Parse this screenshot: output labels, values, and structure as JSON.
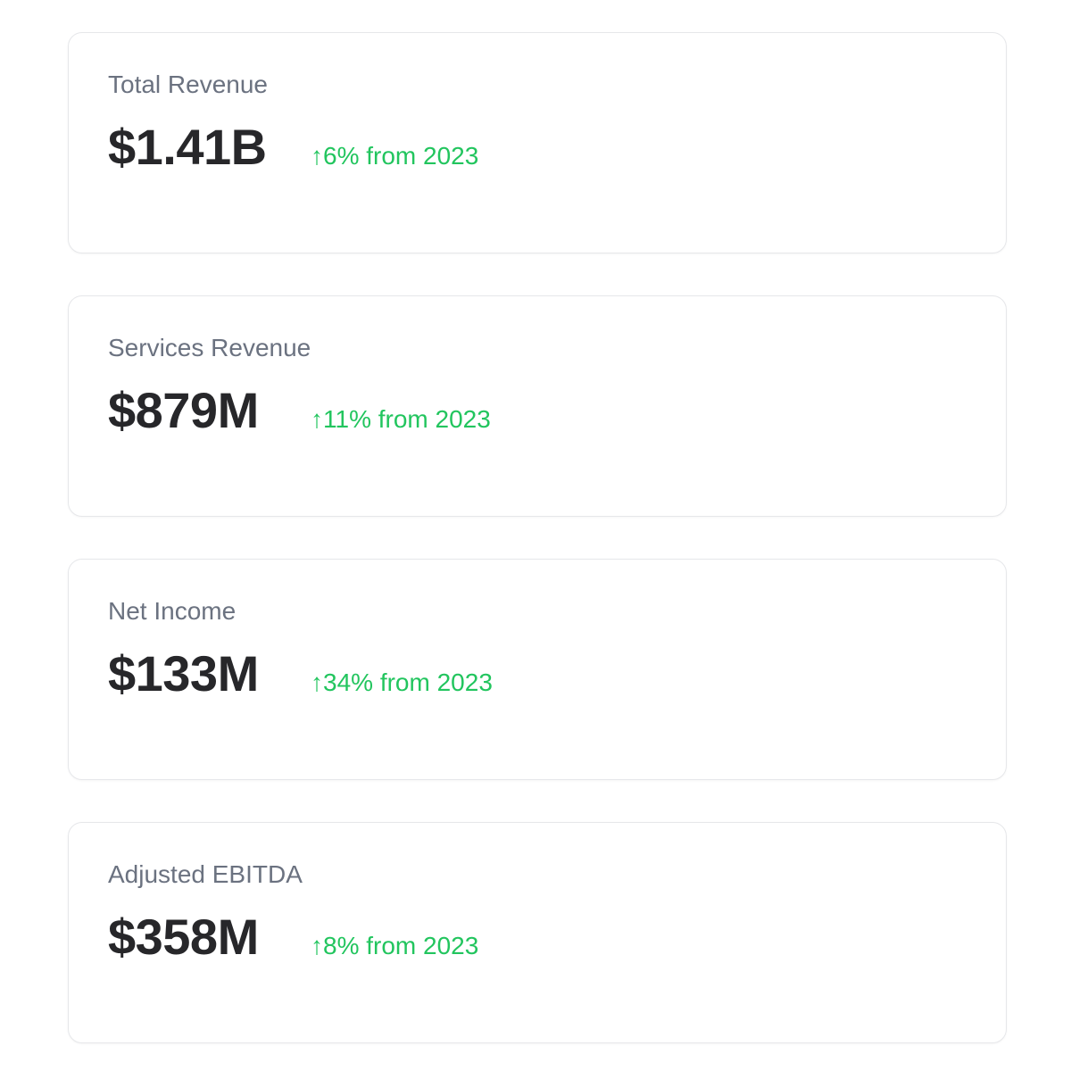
{
  "colors": {
    "positive": "#22c55e",
    "label": "#6b7280",
    "value": "#27272a",
    "card_border": "#e6e7ea",
    "page_background": "#ffffff"
  },
  "cards": [
    {
      "label": "Total Revenue",
      "value": "$1.41B",
      "change_arrow": "↑",
      "change_text": "6% from 2023"
    },
    {
      "label": "Services Revenue",
      "value": "$879M",
      "change_arrow": "↑",
      "change_text": "11% from 2023"
    },
    {
      "label": "Net Income",
      "value": "$133M",
      "change_arrow": "↑",
      "change_text": "34% from 2023"
    },
    {
      "label": "Adjusted EBITDA",
      "value": "$358M",
      "change_arrow": "↑",
      "change_text": "8% from 2023"
    }
  ]
}
